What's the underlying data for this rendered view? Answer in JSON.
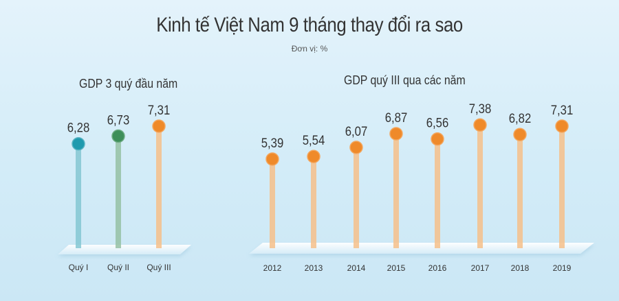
{
  "title": "Kinh tế Việt Nam 9 tháng thay đổi ra sao",
  "unit": "Đơn vị: %",
  "chart_data": [
    {
      "type": "lollipop",
      "title": "GDP 3 quý đầu năm",
      "categories": [
        "Quý I",
        "Quý II",
        "Quý III"
      ],
      "values": [
        6.28,
        6.73,
        7.31
      ],
      "value_labels": [
        "6,28",
        "6,73",
        "7,31"
      ],
      "colors": [
        "#1f9aae",
        "#3e8f5a",
        "#ef8a2a"
      ]
    },
    {
      "type": "lollipop",
      "title": "GDP quý III qua các năm",
      "categories": [
        "2012",
        "2013",
        "2014",
        "2015",
        "2016",
        "2017",
        "2018",
        "2019"
      ],
      "values": [
        5.39,
        5.54,
        6.07,
        6.87,
        6.56,
        7.38,
        6.82,
        7.31
      ],
      "value_labels": [
        "5,39",
        "5,54",
        "6,07",
        "6,87",
        "6,56",
        "7,38",
        "6,82",
        "7,31"
      ],
      "colors": [
        "#ef8a2a"
      ]
    }
  ]
}
